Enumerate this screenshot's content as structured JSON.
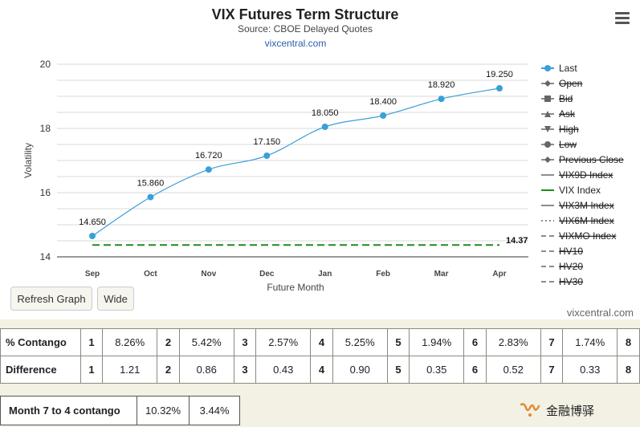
{
  "header": {
    "title": "VIX Futures Term Structure",
    "subtitle": "Source: CBOE Delayed Quotes",
    "link": "vixcentral.com"
  },
  "menu_icon": "hamburger-menu-icon",
  "buttons": {
    "refresh": "Refresh Graph",
    "wide": "Wide"
  },
  "credit": "vixcentral.com",
  "chart_data": {
    "type": "line",
    "title": "VIX Futures Term Structure",
    "subtitle": "Source: CBOE Delayed Quotes",
    "xlabel": "Future Month",
    "ylabel": "Volatility",
    "categories": [
      "Sep",
      "Oct",
      "Nov",
      "Dec",
      "Jan",
      "Feb",
      "Mar",
      "Apr"
    ],
    "ylim": [
      14,
      20
    ],
    "yticks": [
      "14",
      "16",
      "18",
      "20"
    ],
    "grid": true,
    "legend_position": "right",
    "series": [
      {
        "name": "Last",
        "values": [
          14.65,
          15.86,
          16.72,
          17.15,
          18.05,
          18.4,
          18.92,
          19.25
        ],
        "labels": [
          "14.650",
          "15.860",
          "16.720",
          "17.150",
          "18.050",
          "18.400",
          "18.920",
          "19.250"
        ],
        "color": "#3a9fd8"
      },
      {
        "name": "VIX Index",
        "values": [
          14.37,
          14.37,
          14.37,
          14.37,
          14.37,
          14.37,
          14.37,
          14.37
        ],
        "end_label": "14.37",
        "color": "#1f8a1f",
        "dash": true
      }
    ],
    "legend": [
      {
        "name": "Last",
        "marker": "circle",
        "color": "#3a9fd8",
        "line": "solid",
        "active": true
      },
      {
        "name": "Open",
        "marker": "diamond",
        "color": "#666666",
        "line": "solid",
        "active": false
      },
      {
        "name": "Bid",
        "marker": "square",
        "color": "#666666",
        "line": "solid",
        "active": false
      },
      {
        "name": "Ask",
        "marker": "triangle",
        "color": "#666666",
        "line": "solid",
        "active": false
      },
      {
        "name": "High",
        "marker": "triangle-down",
        "color": "#666666",
        "line": "solid",
        "active": false
      },
      {
        "name": "Low",
        "marker": "circle",
        "color": "#666666",
        "line": "solid",
        "active": false
      },
      {
        "name": "Previous Close",
        "marker": "diamond",
        "color": "#666666",
        "line": "solid",
        "active": false
      },
      {
        "name": "VIX9D Index",
        "marker": "none",
        "color": "#666666",
        "line": "solid",
        "active": false
      },
      {
        "name": "VIX Index",
        "marker": "none",
        "color": "#1f8a1f",
        "line": "solid",
        "active": true
      },
      {
        "name": "VIX3M Index",
        "marker": "none",
        "color": "#666666",
        "line": "solid",
        "active": false
      },
      {
        "name": "VIX6M Index",
        "marker": "none",
        "color": "#666666",
        "line": "dotted",
        "active": false
      },
      {
        "name": "VIXMO Index",
        "marker": "none",
        "color": "#666666",
        "line": "dashed",
        "active": false
      },
      {
        "name": "HV10",
        "marker": "none",
        "color": "#666666",
        "line": "dashed",
        "active": false
      },
      {
        "name": "HV20",
        "marker": "none",
        "color": "#666666",
        "line": "dashed",
        "active": false
      },
      {
        "name": "HV30",
        "marker": "none",
        "color": "#666666",
        "line": "dashed",
        "active": false
      }
    ]
  },
  "contango_table": {
    "rows": [
      {
        "label": "% Contango",
        "cells": [
          {
            "month": "1",
            "value": "8.26%"
          },
          {
            "month": "2",
            "value": "5.42%"
          },
          {
            "month": "3",
            "value": "2.57%"
          },
          {
            "month": "4",
            "value": "5.25%"
          },
          {
            "month": "5",
            "value": "1.94%"
          },
          {
            "month": "6",
            "value": "2.83%"
          },
          {
            "month": "7",
            "value": "1.74%"
          }
        ],
        "trailing_month": "8"
      },
      {
        "label": "Difference",
        "cells": [
          {
            "month": "1",
            "value": "1.21"
          },
          {
            "month": "2",
            "value": "0.86"
          },
          {
            "month": "3",
            "value": "0.43"
          },
          {
            "month": "4",
            "value": "0.90"
          },
          {
            "month": "5",
            "value": "0.35"
          },
          {
            "month": "6",
            "value": "0.52"
          },
          {
            "month": "7",
            "value": "0.33"
          }
        ],
        "trailing_month": "8"
      }
    ]
  },
  "month7to4": {
    "label": "Month 7 to 4 contango",
    "value1": "10.32%",
    "value2": "3.44%"
  },
  "watermark": {
    "icon": "wechat-channel-icon",
    "text": "金融博驿"
  }
}
